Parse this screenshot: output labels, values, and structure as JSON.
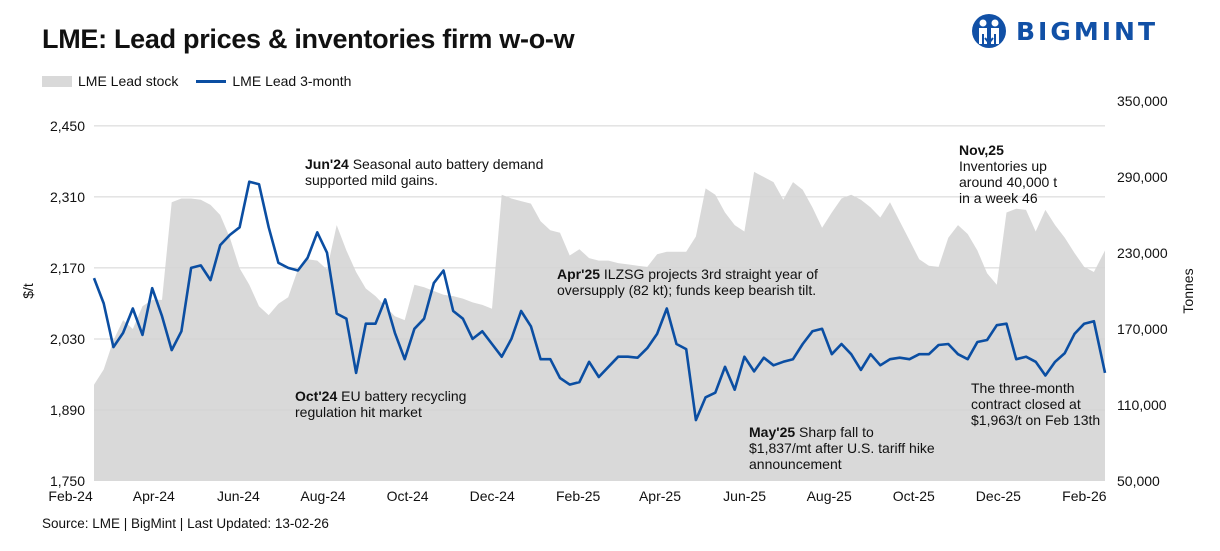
{
  "title": "LME: Lead prices  & inventories firm w-o-w",
  "logo": {
    "text": "BIGMINT",
    "color": "#1150a6"
  },
  "legend": {
    "stock": "LME Lead stock",
    "price": "LME Lead 3-month"
  },
  "source": "Source: LME | BigMint | Last Updated: 13-02-26",
  "annotations": [
    {
      "bold": "Jun'24",
      "lines": [
        "Seasonal auto battery demand",
        "supported mild gains."
      ]
    },
    {
      "bold": "Oct'24",
      "lines": [
        "EU battery recycling",
        "regulation hit market"
      ]
    },
    {
      "bold": "Apr'25",
      "lines": [
        "ILZSG projects 3rd straight year of",
        "oversupply (82 kt); funds keep bearish tilt."
      ]
    },
    {
      "bold": "May'25",
      "lines": [
        "Sharp fall to",
        "$1,837/mt after U.S. tariff hike",
        "announcement"
      ]
    },
    {
      "bold": "Nov,25",
      "lines": [
        "Inventories up",
        "around 40,000 t",
        "in a week 46"
      ]
    },
    {
      "bold": "",
      "lines": [
        "The three-month",
        "contract closed at",
        "$1,963/t on Feb 13th"
      ]
    }
  ],
  "chart_data": {
    "type": "line+area",
    "y_left": {
      "label": "$/t",
      "ticks": [
        1750,
        1890,
        2030,
        2170,
        2310,
        2450
      ],
      "tick_labels": [
        "1,750",
        "1,890",
        "2,030",
        "2,170",
        "2,310",
        "2,450"
      ],
      "range": [
        1750,
        2499
      ]
    },
    "y_right": {
      "label": "Tonnes",
      "ticks": [
        50000,
        110000,
        170000,
        230000,
        290000,
        350000
      ],
      "tick_labels": [
        "50,000",
        "110,000",
        "170,000",
        "230,000",
        "290,000",
        "350,000"
      ],
      "range": [
        50000,
        350000
      ]
    },
    "x_ticks": [
      {
        "date": "2024-02-01",
        "label": "Feb-24"
      },
      {
        "date": "2024-04-01",
        "label": "Apr-24"
      },
      {
        "date": "2024-06-01",
        "label": "Jun-24"
      },
      {
        "date": "2024-08-01",
        "label": "Aug-24"
      },
      {
        "date": "2024-10-01",
        "label": "Oct-24"
      },
      {
        "date": "2024-12-01",
        "label": "Dec-24"
      },
      {
        "date": "2025-02-01",
        "label": "Feb-25"
      },
      {
        "date": "2025-04-01",
        "label": "Apr-25"
      },
      {
        "date": "2025-06-01",
        "label": "Jun-25"
      },
      {
        "date": "2025-08-01",
        "label": "Aug-25"
      },
      {
        "date": "2025-10-01",
        "label": "Oct-25"
      },
      {
        "date": "2025-12-01",
        "label": "Dec-25"
      },
      {
        "date": "2026-02-01",
        "label": "Feb-26"
      }
    ],
    "grid": "horizontal",
    "colors": {
      "price": "#0b4ea2",
      "stock": "#d9d9d9"
    },
    "dates": [
      "2024-02-15",
      "2024-02-22",
      "2024-02-29",
      "2024-03-07",
      "2024-03-14",
      "2024-03-21",
      "2024-03-28",
      "2024-04-04",
      "2024-04-11",
      "2024-04-18",
      "2024-04-25",
      "2024-05-02",
      "2024-05-09",
      "2024-05-16",
      "2024-05-23",
      "2024-05-30",
      "2024-06-06",
      "2024-06-13",
      "2024-06-20",
      "2024-06-27",
      "2024-07-04",
      "2024-07-11",
      "2024-07-18",
      "2024-07-25",
      "2024-08-01",
      "2024-08-08",
      "2024-08-15",
      "2024-08-22",
      "2024-08-29",
      "2024-09-05",
      "2024-09-12",
      "2024-09-19",
      "2024-09-26",
      "2024-10-03",
      "2024-10-10",
      "2024-10-17",
      "2024-10-24",
      "2024-10-31",
      "2024-11-07",
      "2024-11-14",
      "2024-11-21",
      "2024-11-28",
      "2024-12-05",
      "2024-12-12",
      "2024-12-19",
      "2024-12-26",
      "2025-01-02",
      "2025-01-09",
      "2025-01-16",
      "2025-01-23",
      "2025-01-30",
      "2025-02-06",
      "2025-02-13",
      "2025-02-20",
      "2025-02-27",
      "2025-03-06",
      "2025-03-13",
      "2025-03-20",
      "2025-03-27",
      "2025-04-03",
      "2025-04-10",
      "2025-04-17",
      "2025-04-24",
      "2025-05-01",
      "2025-05-08",
      "2025-05-15",
      "2025-05-22",
      "2025-05-29",
      "2025-06-05",
      "2025-06-12",
      "2025-06-19",
      "2025-06-26",
      "2025-07-03",
      "2025-07-10",
      "2025-07-17",
      "2025-07-24",
      "2025-07-31",
      "2025-08-07",
      "2025-08-14",
      "2025-08-21",
      "2025-08-28",
      "2025-09-04",
      "2025-09-11",
      "2025-09-18",
      "2025-09-25",
      "2025-10-02",
      "2025-10-09",
      "2025-10-16",
      "2025-10-23",
      "2025-10-30",
      "2025-11-06",
      "2025-11-13",
      "2025-11-20",
      "2025-11-27",
      "2025-12-04",
      "2025-12-11",
      "2025-12-18",
      "2025-12-25",
      "2026-01-01",
      "2026-01-08",
      "2026-01-15",
      "2026-01-22",
      "2026-01-29",
      "2026-02-05",
      "2026-02-13"
    ],
    "series": [
      {
        "name": "LME Lead 3-month",
        "axis": "left",
        "values": [
          2150,
          2100,
          2014,
          2042,
          2090,
          2038,
          2130,
          2075,
          2008,
          2045,
          2170,
          2175,
          2146,
          2215,
          2235,
          2250,
          2340,
          2335,
          2250,
          2180,
          2170,
          2165,
          2190,
          2240,
          2200,
          2080,
          2070,
          1963,
          2060,
          2060,
          2108,
          2042,
          1990,
          2050,
          2070,
          2140,
          2165,
          2085,
          2070,
          2030,
          2045,
          2020,
          1995,
          2030,
          2085,
          2055,
          1990,
          1990,
          1953,
          1940,
          1945,
          1985,
          1955,
          1975,
          1995,
          1995,
          1993,
          2012,
          2040,
          2090,
          2020,
          2010,
          1870,
          1915,
          1924,
          1975,
          1930,
          1995,
          1966,
          1993,
          1978,
          1985,
          1990,
          2020,
          2045,
          2050,
          2000,
          2020,
          2000,
          1969,
          2000,
          1978,
          1990,
          1993,
          1990,
          2000,
          2000,
          2018,
          2020,
          2000,
          1990,
          2024,
          2028,
          2057,
          2060,
          1990,
          1995,
          1985,
          1958,
          1985,
          2002,
          2040,
          2060,
          2065,
          1963
        ]
      },
      {
        "name": "LME Lead stock",
        "axis": "right",
        "values": [
          126000,
          138000,
          161000,
          177000,
          170000,
          188000,
          193000,
          193000,
          270000,
          273000,
          273000,
          272000,
          268000,
          260000,
          242000,
          218000,
          205000,
          188000,
          181000,
          190000,
          195000,
          217000,
          225000,
          224000,
          217000,
          252000,
          232000,
          215000,
          202000,
          196000,
          188000,
          180000,
          177000,
          205000,
          203000,
          200000,
          197000,
          196000,
          194000,
          191000,
          189000,
          186000,
          276000,
          273000,
          271000,
          269000,
          255000,
          248000,
          246000,
          228000,
          233000,
          226000,
          224000,
          224000,
          222000,
          221000,
          220000,
          219000,
          229000,
          231000,
          231000,
          231000,
          243000,
          281000,
          276000,
          262000,
          252000,
          247000,
          294000,
          290000,
          286000,
          272000,
          286000,
          280000,
          266000,
          250000,
          262000,
          273000,
          276000,
          272000,
          266000,
          258000,
          270000,
          255000,
          240000,
          225000,
          220000,
          219000,
          242000,
          252000,
          245000,
          232000,
          214000,
          205000,
          262000,
          265000,
          264000,
          247000,
          264000,
          252000,
          242000,
          230000,
          219000,
          215000,
          232000
        ]
      }
    ]
  }
}
